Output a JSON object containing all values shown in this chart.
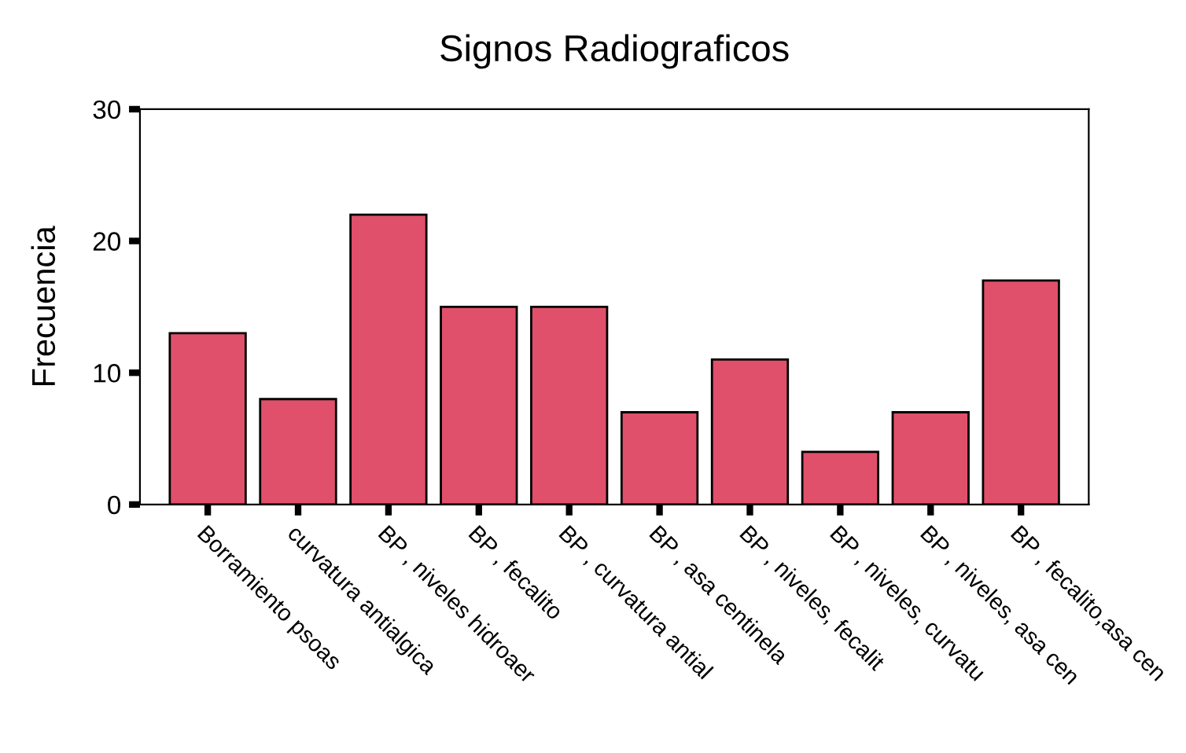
{
  "chart_data": {
    "type": "bar",
    "title": "Signos Radiograficos",
    "ylabel": "Frecuencia",
    "categories": [
      "Borramiento psoas",
      "curvatura antialgica",
      "BP , niveles hidroaer",
      "BP , fecalito",
      "BP , curvatura antial",
      "BP , asa centinela",
      "BP , niveles, fecalit",
      "BP , niveles, curvatu",
      "BP , niveles, asa cen",
      "BP , fecalito,asa cen"
    ],
    "values": [
      13,
      8,
      22,
      15,
      15,
      7,
      11,
      4,
      7,
      17
    ],
    "color": "#e0506a",
    "ylim": [
      0,
      30
    ],
    "yticks": [
      0,
      10,
      20,
      30
    ],
    "grid": false,
    "legend": false
  }
}
